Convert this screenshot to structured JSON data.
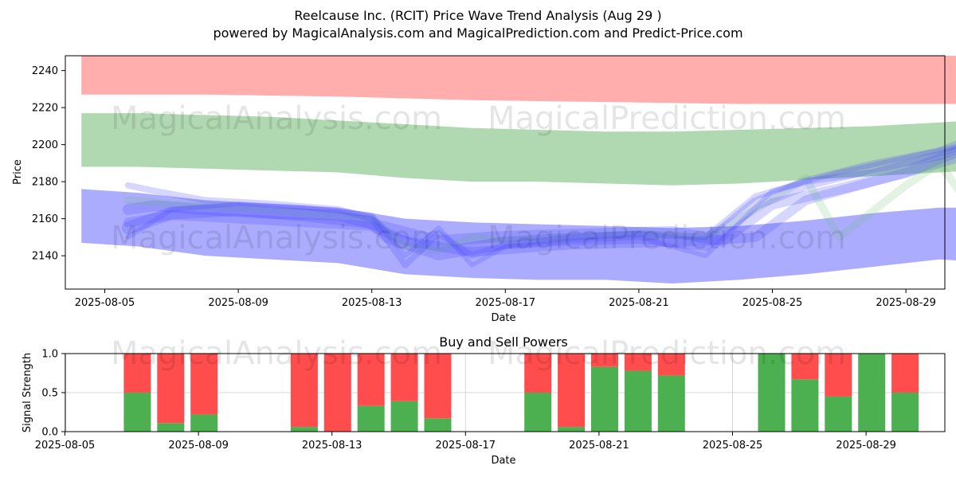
{
  "title_line1": "Reelcause Inc. (RCIT) Price Wave Trend Analysis (Aug 29 )",
  "title_line2": "powered by MagicalAnalysis.com and MagicalPrediction.com and Predict-Price.com",
  "watermarks": [
    "MagicalAnalysis.com",
    "MagicalPrediction.com"
  ],
  "colors": {
    "red_band": "#ff9999",
    "green_band": "#90c990",
    "blue_band": "#8080ff",
    "wave": "#4444ff",
    "buy": "#4caf50",
    "sell": "#ff4d4d"
  },
  "chart_data": [
    {
      "type": "area",
      "title": "",
      "xlabel": "Date",
      "ylabel": "Price",
      "ylim": [
        2122,
        2248
      ],
      "x_ticks": [
        "2025-08-05",
        "2025-08-09",
        "2025-08-13",
        "2025-08-17",
        "2025-08-21",
        "2025-08-25",
        "2025-08-29"
      ],
      "y_ticks": [
        2140,
        2160,
        2180,
        2200,
        2220,
        2240
      ],
      "x": [
        -0.7,
        1,
        3,
        5,
        7,
        9,
        11,
        13,
        15,
        17,
        19,
        21,
        23,
        25,
        27,
        29.9
      ],
      "bands": [
        {
          "name": "resistance",
          "upper": [
            2248,
            2248,
            2248,
            2248,
            2248,
            2248,
            2248,
            2248,
            2248,
            2248,
            2248,
            2248,
            2248,
            2248,
            2248,
            2248
          ],
          "lower": [
            2227,
            2227,
            2227,
            2226.5,
            2226,
            2225,
            2224,
            2223.5,
            2223,
            2222.5,
            2222,
            2222,
            2222,
            2222,
            2222,
            2222
          ]
        },
        {
          "name": "middle",
          "upper": [
            2217,
            2217,
            2216,
            2215,
            2213,
            2211,
            2209,
            2208,
            2207,
            2207,
            2208,
            2209,
            2210,
            2212,
            2214,
            2219
          ]
        },
        {
          "name": "middle-lower",
          "lower": [
            2188,
            2188,
            2187,
            2186,
            2185,
            2182,
            2180,
            2180,
            2179,
            2178,
            2179,
            2181,
            2183,
            2185,
            2187,
            2190
          ]
        },
        {
          "name": "support",
          "upper": [
            2176,
            2174,
            2170,
            2168,
            2166,
            2160,
            2158,
            2157,
            2156,
            2155,
            2156,
            2159,
            2163,
            2166,
            2166,
            2169
          ],
          "lower": [
            2147,
            2145,
            2140,
            2138,
            2136,
            2130,
            2128,
            2127,
            2127,
            2125,
            2127,
            2130,
            2134,
            2138,
            2136,
            2140
          ]
        }
      ],
      "waves": [
        {
          "x": [
            0.7,
            1.5,
            3,
            5,
            7,
            8.5,
            10,
            11.5,
            13,
            15,
            17,
            18.5,
            20,
            22,
            24,
            25.5,
            27,
            28.5
          ],
          "y": [
            2165,
            2167,
            2165,
            2163,
            2162,
            2155,
            2148,
            2150,
            2151,
            2152,
            2153,
            2148,
            2168,
            2176,
            2185,
            2196,
            2200,
            2205
          ]
        },
        {
          "x": [
            0.7,
            2,
            4,
            6,
            8,
            9,
            11,
            12.5,
            14,
            16,
            18,
            19.5,
            21,
            23,
            25,
            26.5,
            27.5,
            28.5
          ],
          "y": [
            2158,
            2162,
            2160,
            2158,
            2156,
            2148,
            2142,
            2144,
            2146,
            2147,
            2148,
            2150,
            2170,
            2180,
            2190,
            2198,
            2196,
            2203
          ]
        },
        {
          "x": [
            0.7,
            2,
            4,
            6,
            8,
            9,
            10,
            11,
            12,
            14,
            16,
            18,
            19.5,
            21,
            22,
            24,
            25,
            26,
            27,
            28
          ],
          "y": [
            2170,
            2168,
            2166,
            2163,
            2160,
            2145,
            2143,
            2150,
            2148,
            2150,
            2152,
            2150,
            2165,
            2182,
            2150,
            2178,
            2190,
            2165,
            2185,
            2205
          ]
        },
        {
          "x": [
            0.7,
            1.5,
            3,
            5,
            7,
            8,
            9,
            10,
            11,
            12,
            14,
            16,
            18,
            19.5,
            21,
            23,
            25,
            26,
            27,
            28,
            29
          ],
          "y": [
            2178,
            2175,
            2170,
            2168,
            2165,
            2160,
            2135,
            2152,
            2140,
            2146,
            2150,
            2152,
            2150,
            2172,
            2180,
            2185,
            2195,
            2200,
            2198,
            2210,
            2172
          ]
        },
        {
          "x": [
            0.7,
            2,
            4,
            6,
            8,
            8.5,
            10,
            12,
            14,
            16,
            18,
            19.5,
            21,
            23,
            25,
            26,
            27,
            28,
            29
          ],
          "y": [
            2155,
            2163,
            2165,
            2162,
            2158,
            2150,
            2141,
            2147,
            2149,
            2150,
            2146,
            2168,
            2179,
            2188,
            2195,
            2202,
            2198,
            2208,
            2210
          ]
        },
        {
          "x": [
            0.7,
            2,
            4,
            6,
            8,
            9,
            10,
            11,
            12,
            14,
            16,
            18,
            20,
            22,
            24,
            26,
            28,
            29
          ],
          "y": [
            2150,
            2165,
            2168,
            2166,
            2162,
            2140,
            2155,
            2135,
            2145,
            2148,
            2150,
            2140,
            2175,
            2185,
            2193,
            2201,
            2207,
            2206
          ]
        }
      ]
    },
    {
      "type": "bar",
      "title": "Buy and Sell Powers",
      "xlabel": "Date",
      "ylabel": "Signal Strength",
      "ylim": [
        0,
        1.0
      ],
      "y_ticks": [
        "0.0",
        "0.5",
        "1.0"
      ],
      "x_ticks": [
        "2025-08-05",
        "2025-08-09",
        "2025-08-13",
        "2025-08-17",
        "2025-08-21",
        "2025-08-25",
        "2025-08-29"
      ],
      "categories": [
        "2025-08-05",
        "2025-08-06",
        "2025-08-07",
        "2025-08-10",
        "2025-08-11",
        "2025-08-12",
        "2025-08-13",
        "2025-08-14",
        "2025-08-17",
        "2025-08-18",
        "2025-08-19",
        "2025-08-20",
        "2025-08-21",
        "2025-08-24",
        "2025-08-25",
        "2025-08-26",
        "2025-08-27",
        "2025-08-28"
      ],
      "offsets": [
        1,
        2,
        3,
        6,
        7,
        8,
        9,
        10,
        13,
        14,
        15,
        16,
        17,
        20,
        21,
        22,
        23,
        24
      ],
      "series": [
        {
          "name": "Buy",
          "values": [
            0.5,
            0.11,
            0.22,
            0.06,
            0.0,
            0.33,
            0.39,
            0.17,
            0.5,
            0.06,
            0.83,
            0.78,
            0.72,
            1.0,
            0.67,
            0.45,
            1.0,
            0.5
          ]
        },
        {
          "name": "Sell",
          "values": [
            0.5,
            0.89,
            0.78,
            0.94,
            1.0,
            0.67,
            0.61,
            0.83,
            0.5,
            0.94,
            0.17,
            0.22,
            0.28,
            0.0,
            0.33,
            0.55,
            0.0,
            0.5
          ]
        }
      ]
    }
  ]
}
